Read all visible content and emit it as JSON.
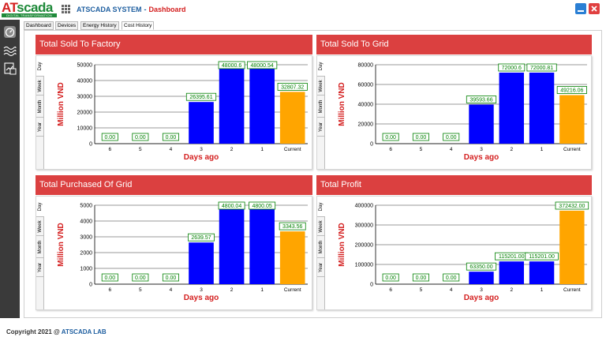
{
  "app": {
    "logo_at": "AT",
    "logo_scada": "scada",
    "logo_subtitle": "DIGITAL TRANSFORMATION",
    "title": "ATSCADA SYSTEM",
    "separator": "-",
    "page": "Dashboard"
  },
  "tabs": [
    "Dashboard",
    "Devices",
    "Energy History",
    "Cost History"
  ],
  "active_tab": "Cost History",
  "period_tabs": [
    "Day",
    "Week",
    "Month",
    "Year"
  ],
  "footer": {
    "copyright": "Copyright 2021 @",
    "brand": "ATSCADA LAB"
  },
  "colors": {
    "header": "#db4040",
    "bar": "#0000ff",
    "current_bar": "#ffa500",
    "label": "#008000",
    "axis_title": "#d42020"
  },
  "icons": [
    "grid-icon",
    "minimize-icon",
    "close-icon",
    "gauge-icon",
    "waveform-icon",
    "document-chart-icon"
  ],
  "panels": [
    {
      "title": "Total Sold To Factory"
    },
    {
      "title": "Total Sold To Grid"
    },
    {
      "title": "Total Purchased Of Grid"
    },
    {
      "title": "Total Profit"
    }
  ],
  "chart_data": [
    {
      "type": "bar",
      "title": "Total Sold To Factory",
      "xlabel": "Days ago",
      "ylabel": "Million VND",
      "categories": [
        "6",
        "5",
        "4",
        "3",
        "2",
        "1",
        "Current"
      ],
      "values": [
        0,
        0,
        0,
        26395.61,
        48000.6,
        48000.54,
        32807.32
      ],
      "labels": [
        "0.00",
        "0.00",
        "0.00",
        "26395.61",
        "48000.6",
        "48000.54",
        "32807.32"
      ],
      "yticks": [
        0,
        10000,
        20000,
        30000,
        40000,
        50000
      ],
      "ylim": [
        0,
        50000
      ],
      "grid": true
    },
    {
      "type": "bar",
      "title": "Total Sold To Grid",
      "xlabel": "Days ago",
      "ylabel": "Million VND",
      "categories": [
        "6",
        "5",
        "4",
        "3",
        "2",
        "1",
        "Current"
      ],
      "values": [
        0,
        0,
        0,
        39593.66,
        72000.6,
        72000.81,
        49216.06
      ],
      "labels": [
        "0.00",
        "0.00",
        "0.00",
        "39593.66",
        "72000.6",
        "72000.81",
        "49216.06"
      ],
      "yticks": [
        0,
        20000,
        40000,
        60000,
        80000
      ],
      "ylim": [
        0,
        80000
      ],
      "grid": true
    },
    {
      "type": "bar",
      "title": "Total Purchased Of Grid",
      "xlabel": "Days ago",
      "ylabel": "Million VND",
      "categories": [
        "6",
        "5",
        "4",
        "3",
        "2",
        "1",
        "Current"
      ],
      "values": [
        0,
        0,
        0,
        2639.57,
        4800.04,
        4800.05,
        3343.56
      ],
      "labels": [
        "0.00",
        "0.00",
        "0.00",
        "2639.57",
        "4800.04",
        "4800.05",
        "3343.56"
      ],
      "yticks": [
        0,
        1000,
        2000,
        3000,
        4000,
        5000
      ],
      "ylim": [
        0,
        5000
      ],
      "grid": true
    },
    {
      "type": "bar",
      "title": "Total Profit",
      "xlabel": "Days ago",
      "ylabel": "Million VND",
      "categories": [
        "6",
        "5",
        "4",
        "3",
        "2",
        "1",
        "Current"
      ],
      "values": [
        0,
        0,
        0,
        63350,
        115201,
        115201,
        372432
      ],
      "labels": [
        "0.00",
        "0.00",
        "0.00",
        "63350.00",
        "115201.00",
        "115201.00",
        "372432.00"
      ],
      "yticks": [
        0,
        100000,
        200000,
        300000,
        400000
      ],
      "ylim": [
        0,
        400000
      ],
      "grid": true
    }
  ]
}
